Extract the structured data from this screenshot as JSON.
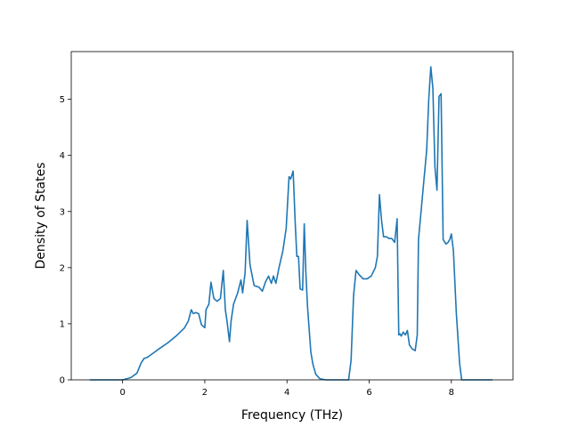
{
  "chart_data": {
    "type": "line",
    "title": "",
    "xlabel": "Frequency (THz)",
    "ylabel": "Density of States",
    "xlim": [
      -1.25,
      9.5
    ],
    "ylim": [
      0,
      5.85
    ],
    "x_ticks": [
      0,
      2,
      4,
      6,
      8
    ],
    "y_ticks": [
      0,
      1,
      2,
      3,
      4,
      5
    ],
    "grid": false,
    "legend": "none",
    "color": "#1f77b4",
    "series": [
      {
        "x": [
          -0.8,
          0.0,
          0.2,
          0.35,
          0.45,
          0.52,
          0.6,
          0.75,
          0.9,
          1.1,
          1.3,
          1.5,
          1.6,
          1.67,
          1.72,
          1.78,
          1.85,
          1.92,
          2.0,
          2.03,
          2.1,
          2.15,
          2.22,
          2.3,
          2.38,
          2.45,
          2.5,
          2.54,
          2.6,
          2.64,
          2.7,
          2.8,
          2.88,
          2.92,
          2.98,
          3.03,
          3.1,
          3.2,
          3.32,
          3.4,
          3.48,
          3.55,
          3.62,
          3.67,
          3.73,
          3.8,
          3.9,
          3.98,
          4.05,
          4.09,
          4.15,
          4.2,
          4.24,
          4.28,
          4.32,
          4.38,
          4.42,
          4.46,
          4.5,
          4.58,
          4.63,
          4.7,
          4.8,
          4.95,
          5.1,
          5.5,
          5.56,
          5.62,
          5.68,
          5.75,
          5.85,
          5.95,
          6.05,
          6.15,
          6.2,
          6.25,
          6.3,
          6.35,
          6.42,
          6.48,
          6.55,
          6.62,
          6.68,
          6.72,
          6.75,
          6.78,
          6.83,
          6.88,
          6.93,
          6.98,
          7.05,
          7.12,
          7.17,
          7.2,
          7.3,
          7.4,
          7.45,
          7.5,
          7.55,
          7.6,
          7.65,
          7.7,
          7.75,
          7.8,
          7.87,
          7.92,
          7.96,
          8.0,
          8.05,
          8.12,
          8.2,
          8.25,
          9.0
        ],
        "y": [
          0,
          0,
          0.04,
          0.12,
          0.3,
          0.38,
          0.4,
          0.48,
          0.56,
          0.66,
          0.78,
          0.92,
          1.05,
          1.25,
          1.18,
          1.2,
          1.18,
          0.98,
          0.93,
          1.25,
          1.35,
          1.74,
          1.45,
          1.4,
          1.45,
          1.95,
          1.25,
          1.05,
          0.68,
          1.05,
          1.35,
          1.55,
          1.78,
          1.55,
          1.9,
          2.84,
          2.05,
          1.68,
          1.65,
          1.58,
          1.75,
          1.85,
          1.72,
          1.85,
          1.72,
          1.98,
          2.3,
          2.7,
          3.62,
          3.58,
          3.72,
          2.8,
          2.2,
          2.2,
          1.62,
          1.6,
          2.78,
          1.9,
          1.3,
          0.5,
          0.28,
          0.1,
          0.02,
          0.0,
          0.0,
          0.0,
          0.35,
          1.5,
          1.95,
          1.88,
          1.8,
          1.8,
          1.85,
          2.0,
          2.2,
          3.3,
          2.85,
          2.55,
          2.55,
          2.52,
          2.52,
          2.45,
          2.87,
          0.8,
          0.82,
          0.78,
          0.85,
          0.8,
          0.88,
          0.62,
          0.55,
          0.52,
          0.8,
          2.5,
          3.3,
          4.1,
          5.0,
          5.58,
          5.2,
          3.8,
          3.38,
          5.05,
          5.1,
          2.5,
          2.42,
          2.45,
          2.5,
          2.6,
          2.3,
          1.2,
          0.3,
          0.0,
          0.0
        ]
      }
    ]
  }
}
